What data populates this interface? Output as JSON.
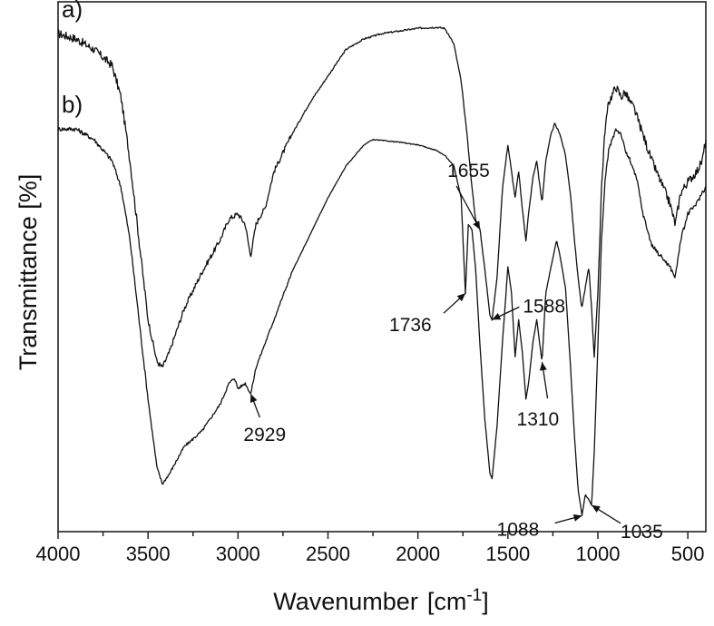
{
  "chart_data": {
    "type": "line",
    "title": "",
    "xlabel": "Wavenumber",
    "xlabel_unit_prefix": "[cm",
    "xlabel_unit_sup": "-1",
    "xlabel_unit_suffix": "]",
    "ylabel": "Transmittance [%]",
    "xlim": [
      4000,
      400
    ],
    "x_reversed": true,
    "yticks_shown": false,
    "grid": false,
    "xticks": [
      {
        "value": 4000,
        "label": "4000"
      },
      {
        "value": 3500,
        "label": "3500"
      },
      {
        "value": 3000,
        "label": "3000"
      },
      {
        "value": 2500,
        "label": "2500"
      },
      {
        "value": 2000,
        "label": "2000"
      },
      {
        "value": 1500,
        "label": "1500"
      },
      {
        "value": 1000,
        "label": "1000"
      },
      {
        "value": 500,
        "label": "500"
      }
    ],
    "ylim": [
      0,
      100
    ],
    "series": [
      {
        "name": "a)",
        "noise": 0.9,
        "points": [
          [
            4000,
            94
          ],
          [
            3900,
            93
          ],
          [
            3800,
            91
          ],
          [
            3700,
            88
          ],
          [
            3650,
            82
          ],
          [
            3600,
            70
          ],
          [
            3550,
            55
          ],
          [
            3500,
            40
          ],
          [
            3450,
            32
          ],
          [
            3420,
            31
          ],
          [
            3380,
            34
          ],
          [
            3300,
            42
          ],
          [
            3200,
            49
          ],
          [
            3100,
            55
          ],
          [
            3050,
            59
          ],
          [
            3000,
            60
          ],
          [
            2960,
            58
          ],
          [
            2930,
            52
          ],
          [
            2900,
            58
          ],
          [
            2870,
            60
          ],
          [
            2850,
            61
          ],
          [
            2800,
            68
          ],
          [
            2700,
            75
          ],
          [
            2600,
            81
          ],
          [
            2500,
            86
          ],
          [
            2400,
            91
          ],
          [
            2300,
            93
          ],
          [
            2200,
            94
          ],
          [
            2100,
            94.5
          ],
          [
            2000,
            95
          ],
          [
            1900,
            95.2
          ],
          [
            1850,
            95
          ],
          [
            1800,
            92
          ],
          [
            1760,
            85
          ],
          [
            1730,
            76
          ],
          [
            1700,
            65
          ],
          [
            1680,
            59
          ],
          [
            1655,
            57
          ],
          [
            1630,
            50
          ],
          [
            1600,
            41
          ],
          [
            1588,
            40
          ],
          [
            1560,
            48
          ],
          [
            1530,
            65
          ],
          [
            1500,
            73
          ],
          [
            1480,
            68
          ],
          [
            1460,
            63
          ],
          [
            1440,
            68
          ],
          [
            1420,
            61
          ],
          [
            1400,
            55
          ],
          [
            1385,
            60
          ],
          [
            1360,
            67
          ],
          [
            1340,
            70
          ],
          [
            1310,
            62
          ],
          [
            1290,
            70
          ],
          [
            1260,
            75
          ],
          [
            1240,
            77
          ],
          [
            1210,
            75
          ],
          [
            1180,
            71
          ],
          [
            1150,
            63
          ],
          [
            1130,
            55
          ],
          [
            1110,
            48
          ],
          [
            1090,
            42
          ],
          [
            1070,
            46
          ],
          [
            1050,
            50
          ],
          [
            1035,
            42
          ],
          [
            1020,
            33
          ],
          [
            1000,
            45
          ],
          [
            980,
            65
          ],
          [
            960,
            76
          ],
          [
            940,
            81
          ],
          [
            900,
            84
          ],
          [
            870,
            82
          ],
          [
            850,
            83
          ],
          [
            820,
            81
          ],
          [
            800,
            80
          ],
          [
            780,
            78
          ],
          [
            700,
            70
          ],
          [
            650,
            66
          ],
          [
            600,
            62
          ],
          [
            570,
            58
          ],
          [
            540,
            64
          ],
          [
            500,
            66
          ],
          [
            450,
            68
          ],
          [
            420,
            70
          ],
          [
            400,
            74
          ]
        ]
      },
      {
        "name": "b)",
        "noise": 0.45,
        "points": [
          [
            4000,
            76
          ],
          [
            3900,
            76
          ],
          [
            3800,
            74
          ],
          [
            3700,
            70
          ],
          [
            3650,
            65
          ],
          [
            3600,
            55
          ],
          [
            3550,
            40
          ],
          [
            3500,
            25
          ],
          [
            3450,
            12
          ],
          [
            3420,
            9
          ],
          [
            3380,
            11
          ],
          [
            3300,
            16
          ],
          [
            3200,
            19
          ],
          [
            3100,
            24
          ],
          [
            3050,
            28
          ],
          [
            3020,
            29
          ],
          [
            3000,
            27
          ],
          [
            2960,
            28
          ],
          [
            2929,
            26
          ],
          [
            2900,
            31
          ],
          [
            2800,
            40
          ],
          [
            2700,
            49
          ],
          [
            2600,
            56
          ],
          [
            2500,
            63
          ],
          [
            2400,
            69
          ],
          [
            2300,
            73
          ],
          [
            2250,
            74
          ],
          [
            2100,
            73.5
          ],
          [
            2000,
            73
          ],
          [
            1900,
            72
          ],
          [
            1850,
            71
          ],
          [
            1800,
            69
          ],
          [
            1760,
            63
          ],
          [
            1736,
            45
          ],
          [
            1720,
            58
          ],
          [
            1700,
            57
          ],
          [
            1680,
            50
          ],
          [
            1655,
            35
          ],
          [
            1630,
            22
          ],
          [
            1600,
            11
          ],
          [
            1588,
            10
          ],
          [
            1560,
            20
          ],
          [
            1530,
            36
          ],
          [
            1500,
            50
          ],
          [
            1480,
            45
          ],
          [
            1460,
            33
          ],
          [
            1440,
            40
          ],
          [
            1420,
            34
          ],
          [
            1400,
            25
          ],
          [
            1385,
            28
          ],
          [
            1360,
            36
          ],
          [
            1340,
            40
          ],
          [
            1310,
            32
          ],
          [
            1290,
            45
          ],
          [
            1260,
            50
          ],
          [
            1230,
            55
          ],
          [
            1210,
            52
          ],
          [
            1180,
            46
          ],
          [
            1150,
            30
          ],
          [
            1130,
            18
          ],
          [
            1110,
            8
          ],
          [
            1088,
            3
          ],
          [
            1070,
            7
          ],
          [
            1050,
            6
          ],
          [
            1035,
            5
          ],
          [
            1020,
            15
          ],
          [
            1000,
            35
          ],
          [
            980,
            55
          ],
          [
            960,
            66
          ],
          [
            940,
            72
          ],
          [
            900,
            76
          ],
          [
            870,
            75
          ],
          [
            850,
            72
          ],
          [
            820,
            70
          ],
          [
            780,
            66
          ],
          [
            750,
            60
          ],
          [
            700,
            54
          ],
          [
            650,
            52
          ],
          [
            600,
            50
          ],
          [
            570,
            48
          ],
          [
            540,
            55
          ],
          [
            500,
            60
          ],
          [
            450,
            62
          ],
          [
            420,
            64
          ],
          [
            400,
            65
          ]
        ]
      }
    ],
    "annotations": [
      {
        "text": "1655",
        "x": 1655,
        "series": 0
      },
      {
        "text": "1588",
        "x": 1588,
        "series": 0
      },
      {
        "text": "1736",
        "x": 1736,
        "series": 1
      },
      {
        "text": "2929",
        "x": 2929,
        "series": 1
      },
      {
        "text": "1310",
        "x": 1310,
        "series": 1
      },
      {
        "text": "1088",
        "x": 1088,
        "series": 1
      },
      {
        "text": "1035",
        "x": 1035,
        "series": 1
      }
    ]
  }
}
